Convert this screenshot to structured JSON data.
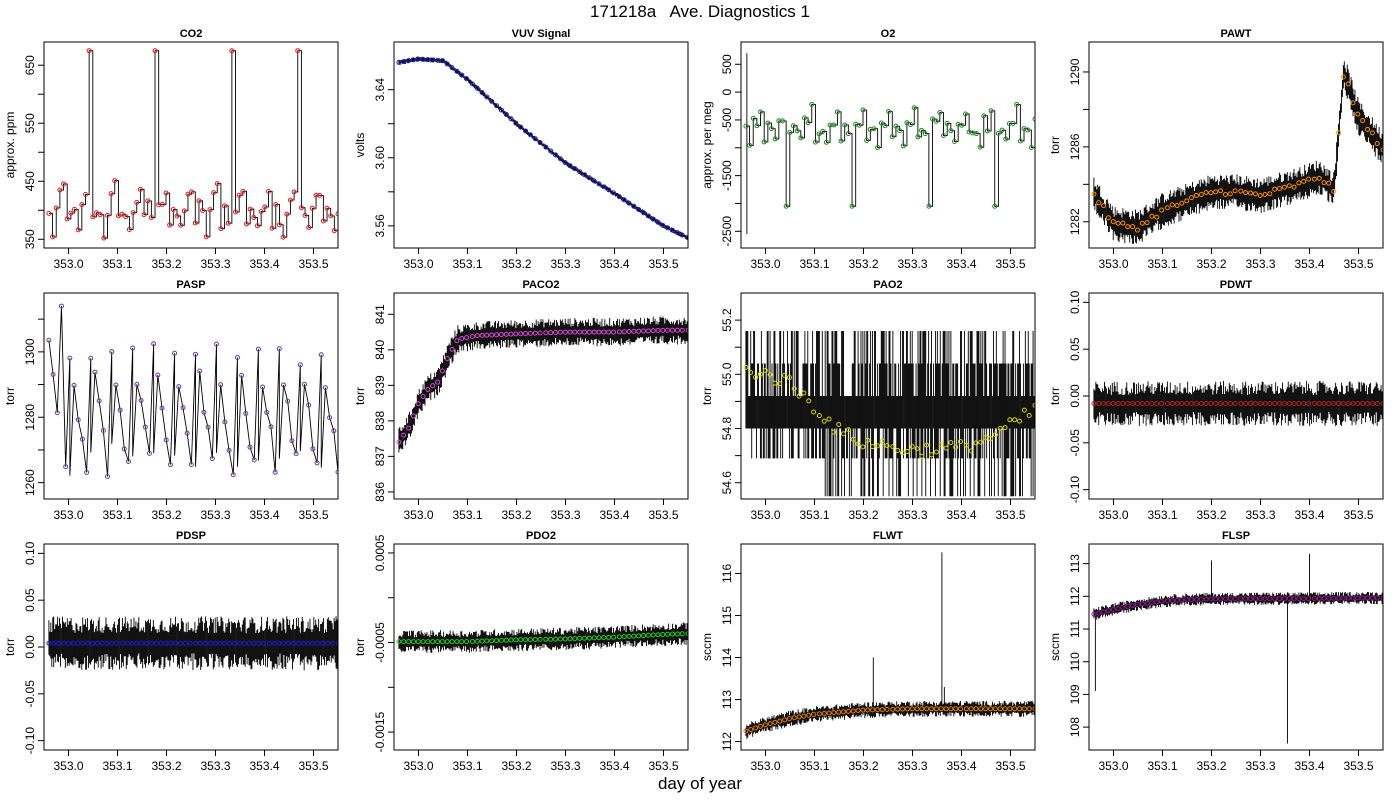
{
  "header": {
    "title": "171218a   Ave. Diagnostics 1"
  },
  "footer": {
    "xlabel": "day of year"
  },
  "shared_x": {
    "ticks": [
      353.0,
      353.1,
      353.2,
      353.3,
      353.4,
      353.5
    ],
    "tick_labels": [
      "353.0",
      "353.1",
      "353.2",
      "353.3",
      "353.4",
      "353.5"
    ],
    "range": [
      352.95,
      353.55
    ]
  },
  "chart_data": [
    {
      "id": "co2",
      "type": "line",
      "title": "CO2",
      "ylabel": "approx. ppm",
      "ylim": [
        335,
        690
      ],
      "yticks": [
        350,
        450,
        550,
        650
      ],
      "ytick_labels": [
        "350",
        "450",
        "550",
        "650"
      ],
      "minor_yticks": [
        400,
        500,
        600
      ],
      "line_color": "#000000",
      "marker_color": "#e41a1c",
      "x": [
        352.96,
        353.55
      ],
      "y_base": 400,
      "y_min": 345,
      "y_max": 675,
      "spikes_x": [
        353.04,
        353.18,
        353.33,
        353.47
      ],
      "spike_y": 675,
      "notes": "step pattern ~360-440 ppm with periodic spikes to 675"
    },
    {
      "id": "vuv",
      "type": "line",
      "title": "VUV Signal",
      "ylabel": "volts",
      "ylim": [
        3.547,
        3.668
      ],
      "yticks": [
        3.56,
        3.6,
        3.64
      ],
      "ytick_labels": [
        "3.56",
        "3.60",
        "3.64"
      ],
      "minor_yticks": [
        3.58,
        3.62
      ],
      "line_color": "#000000",
      "marker_color": "#1f1fbf",
      "x": [
        352.96,
        353.0,
        353.05,
        353.1,
        353.2,
        353.3,
        353.4,
        353.5,
        353.55
      ],
      "y": [
        3.656,
        3.658,
        3.657,
        3.646,
        3.62,
        3.597,
        3.579,
        3.56,
        3.553
      ]
    },
    {
      "id": "o2",
      "type": "line",
      "title": "O2",
      "ylabel": "approx. per meg",
      "ylim": [
        -2800,
        900
      ],
      "yticks": [
        -2500,
        -1500,
        -500,
        0,
        500
      ],
      "ytick_labels": [
        "-2500",
        "-1500",
        "-500",
        "0",
        "500"
      ],
      "minor_yticks": [
        -2000,
        -1000
      ],
      "line_color": "#000000",
      "marker_color": "#1a8a1a",
      "x": [
        352.96,
        353.55
      ],
      "y_base": -650,
      "y_min": -2050,
      "y_max": -150,
      "spikes_x": [
        353.04,
        353.18,
        353.33,
        353.47
      ],
      "spike_y": -2050,
      "notes": "step pattern ~-900 to -300 with periodic drops to -2050"
    },
    {
      "id": "pawt",
      "type": "line",
      "title": "PAWT",
      "ylabel": "torr",
      "ylim": [
        1280.6,
        1291.6
      ],
      "yticks": [
        1282,
        1286,
        1290
      ],
      "ytick_labels": [
        "1282",
        "1286",
        "1290"
      ],
      "minor_yticks": [
        1284,
        1288
      ],
      "line_color": "#000000",
      "marker_color": "#ff8c00",
      "x": [
        352.96,
        353.0,
        353.05,
        353.1,
        353.2,
        353.25,
        353.3,
        353.38,
        353.42,
        353.45,
        353.47,
        353.5,
        353.55
      ],
      "y": [
        1283.5,
        1281.9,
        1281.7,
        1282.6,
        1283.6,
        1283.6,
        1283.4,
        1284.0,
        1284.4,
        1283.7,
        1290.0,
        1287.6,
        1285.9
      ]
    },
    {
      "id": "pasp",
      "type": "line",
      "title": "PASP",
      "ylabel": "torr",
      "ylim": [
        1255,
        1318
      ],
      "yticks": [
        1260,
        1280,
        1300
      ],
      "ytick_labels": [
        "1260",
        "1280",
        "1300"
      ],
      "minor_yticks": [
        1270,
        1290,
        1310
      ],
      "line_color": "#000000",
      "marker_color": "#6a3d9a",
      "x": [
        352.96,
        353.55
      ],
      "y_base": 1283,
      "y_min": 1259,
      "y_max": 1314,
      "notes": "sawtooth oscillation between ~1260 and ~1300 torr"
    },
    {
      "id": "paco2",
      "type": "line",
      "title": "PACO2",
      "ylabel": "torr",
      "ylim": [
        835.8,
        841.6
      ],
      "yticks": [
        836,
        837,
        838,
        839,
        840,
        841
      ],
      "ytick_labels": [
        "836",
        "837",
        "838",
        "839",
        "840",
        "841"
      ],
      "minor_yticks": [],
      "line_color": "#000000",
      "marker_color": "#d946d9",
      "x": [
        352.96,
        352.98,
        353.0,
        353.02,
        353.04,
        353.06,
        353.08,
        353.12,
        353.2,
        353.3,
        353.4,
        353.5,
        353.55
      ],
      "y": [
        837.4,
        837.8,
        838.5,
        838.9,
        839.1,
        839.8,
        840.3,
        840.4,
        840.45,
        840.5,
        840.5,
        840.55,
        840.55
      ]
    },
    {
      "id": "pao2",
      "type": "line",
      "title": "PAO2",
      "ylabel": "torr",
      "ylim": [
        54.54,
        55.3
      ],
      "yticks": [
        54.6,
        54.8,
        55.0,
        55.2
      ],
      "ytick_labels": [
        "54.6",
        "54.8",
        "55.0",
        "55.2"
      ],
      "minor_yticks": [
        54.7,
        54.9,
        55.1
      ],
      "line_color": "#000000",
      "marker_color": "#d6d600",
      "x": [
        352.96,
        353.0,
        353.05,
        353.1,
        353.15,
        353.2,
        353.3,
        353.4,
        353.45,
        353.5,
        353.55
      ],
      "y": [
        55.02,
        55.0,
        54.97,
        54.88,
        54.79,
        54.75,
        54.72,
        54.73,
        54.76,
        54.81,
        54.87
      ],
      "band_levels": [
        54.69,
        54.8,
        54.92,
        55.04,
        55.16
      ]
    },
    {
      "id": "pdwt",
      "type": "line",
      "title": "PDWT",
      "ylabel": "torr",
      "ylim": [
        -0.11,
        0.11
      ],
      "yticks": [
        -0.1,
        -0.05,
        0.0,
        0.05,
        0.1
      ],
      "ytick_labels": [
        "-0.10",
        "-0.05",
        "0.00",
        "0.05",
        "0.10"
      ],
      "minor_yticks": [],
      "line_color": "#000000",
      "marker_color": "#b22222",
      "x": [
        352.96,
        353.55
      ],
      "y_base": -0.008,
      "noise": 0.015
    },
    {
      "id": "pdsp",
      "type": "line",
      "title": "PDSP",
      "ylabel": "torr",
      "ylim": [
        -0.11,
        0.11
      ],
      "yticks": [
        -0.1,
        -0.05,
        0.0,
        0.05,
        0.1
      ],
      "ytick_labels": [
        "-0.10",
        "-0.05",
        "0.00",
        "0.05",
        "0.10"
      ],
      "minor_yticks": [],
      "line_color": "#000000",
      "marker_color": "#1a1ad6",
      "x": [
        352.96,
        353.55
      ],
      "y_base": 0.004,
      "noise": 0.018
    },
    {
      "id": "pdo2",
      "type": "line",
      "title": "PDO2",
      "ylabel": "torr",
      "ylim": [
        -0.0017,
        0.0006
      ],
      "yticks": [
        -0.0015,
        -0.0005,
        0.0005
      ],
      "ytick_labels": [
        "-0.0015",
        "-0.0005",
        "0.0005"
      ],
      "minor_yticks": [
        -0.001,
        0.0
      ],
      "line_color": "#000000",
      "marker_color": "#22cc22",
      "x": [
        352.96,
        353.0,
        353.1,
        353.2,
        353.3,
        353.4,
        353.5,
        353.55
      ],
      "y": [
        -0.00049,
        -0.00049,
        -0.00049,
        -0.00047,
        -0.00046,
        -0.00044,
        -0.00041,
        -0.0004
      ],
      "noise": 8e-05
    },
    {
      "id": "flwt",
      "type": "line",
      "title": "FLWT",
      "ylabel": "sccm",
      "ylim": [
        111.8,
        116.7
      ],
      "yticks": [
        112,
        113,
        114,
        115,
        116
      ],
      "ytick_labels": [
        "112",
        "113",
        "114",
        "115",
        "116"
      ],
      "minor_yticks": [],
      "line_color": "#000000",
      "marker_color": "#e07b00",
      "x": [
        352.96,
        353.0,
        353.05,
        353.1,
        353.15,
        353.2,
        353.3,
        353.4,
        353.5,
        353.55
      ],
      "y": [
        112.25,
        112.4,
        112.55,
        112.65,
        112.7,
        112.75,
        112.78,
        112.78,
        112.78,
        112.78
      ],
      "spikes": [
        [
          353.22,
          114.0
        ],
        [
          353.36,
          116.5
        ],
        [
          353.365,
          113.3
        ]
      ]
    },
    {
      "id": "flsp",
      "type": "line",
      "title": "FLSP",
      "ylabel": "sccm",
      "ylim": [
        107.3,
        113.6
      ],
      "yticks": [
        108,
        109,
        110,
        111,
        112,
        113
      ],
      "ytick_labels": [
        "108",
        "109",
        "110",
        "111",
        "112",
        "113"
      ],
      "minor_yticks": [],
      "line_color": "#000000",
      "marker_color": "#8b1a8b",
      "x": [
        352.96,
        353.0,
        353.05,
        353.1,
        353.15,
        353.2,
        353.3,
        353.4,
        353.5,
        353.55
      ],
      "y": [
        111.45,
        111.6,
        111.75,
        111.85,
        111.9,
        111.92,
        111.93,
        111.93,
        111.95,
        111.95
      ],
      "spikes": [
        [
          352.963,
          109.1
        ],
        [
          353.355,
          107.5
        ],
        [
          353.4,
          113.3
        ],
        [
          353.2,
          113.1
        ]
      ]
    }
  ]
}
